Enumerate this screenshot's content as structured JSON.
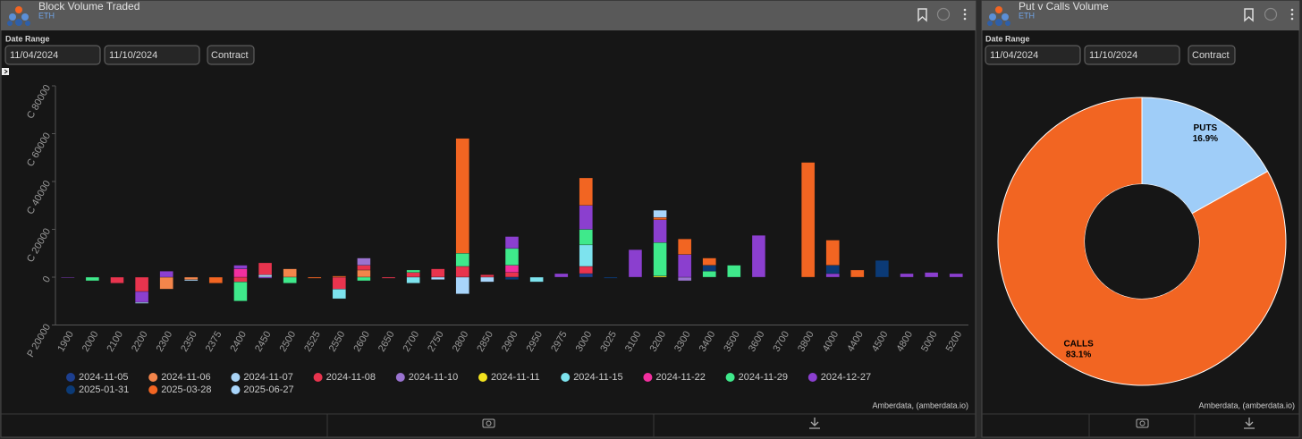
{
  "chart_data": [
    {
      "type": "bar",
      "stacked": true,
      "title": "Block Volume Traded",
      "subtitle": "ETH",
      "categories": [
        "1900",
        "2000",
        "2100",
        "2200",
        "2300",
        "2350",
        "2375",
        "2400",
        "2450",
        "2500",
        "2525",
        "2550",
        "2600",
        "2650",
        "2700",
        "2750",
        "2800",
        "2850",
        "2900",
        "2950",
        "2975",
        "3000",
        "3025",
        "3100",
        "3200",
        "3300",
        "3400",
        "3500",
        "3600",
        "3700",
        "3800",
        "4000",
        "4400",
        "4500",
        "4800",
        "5000",
        "5200"
      ],
      "ylim": [
        -20000,
        80000
      ],
      "yticks": [
        {
          "value": -20000,
          "label": "P 20000"
        },
        0,
        {
          "value": 20000,
          "label": "C 20000"
        },
        {
          "value": 40000,
          "label": "C 40000"
        },
        {
          "value": 60000,
          "label": "C 60000"
        },
        {
          "value": 80000,
          "label": "C 80000"
        }
      ],
      "grid": false,
      "series": [
        {
          "name": "2024-11-05",
          "color": "#1d3f8f",
          "values": [
            null,
            null,
            null,
            null,
            null,
            null,
            null,
            null,
            null,
            null,
            null,
            null,
            null,
            null,
            null,
            null,
            null,
            null,
            null,
            null,
            null,
            1500,
            null,
            null,
            null,
            null,
            null,
            null,
            null,
            null,
            null,
            null,
            null,
            null,
            null,
            null,
            null
          ]
        },
        {
          "name": "2024-11-06",
          "color": "#f3854b",
          "values": [
            null,
            null,
            null,
            null,
            -5000,
            -1000,
            null,
            null,
            null,
            3500,
            null,
            null,
            3000,
            null,
            null,
            null,
            null,
            null,
            null,
            null,
            null,
            null,
            null,
            null,
            null,
            null,
            null,
            null,
            null,
            null,
            null,
            null,
            null,
            null,
            null,
            null,
            null
          ]
        },
        {
          "name": "2024-11-07",
          "color": "#a9d3f5",
          "values": [
            null,
            null,
            null,
            null,
            null,
            -500,
            null,
            null,
            1000,
            null,
            null,
            null,
            null,
            null,
            null,
            null,
            null,
            null,
            null,
            null,
            null,
            null,
            null,
            null,
            null,
            null,
            null,
            null,
            null,
            null,
            null,
            null,
            null,
            null,
            null,
            null,
            null
          ]
        },
        {
          "name": "2024-11-08",
          "color": "#e8344e",
          "values": [
            null,
            null,
            -2500,
            -6000,
            null,
            null,
            null,
            -2000,
            5000,
            null,
            null,
            -5000,
            2000,
            -500,
            2000,
            3500,
            4500,
            1000,
            2000,
            null,
            null,
            3000,
            null,
            null,
            null,
            null,
            null,
            null,
            null,
            null,
            null,
            null,
            null,
            null,
            null,
            null,
            null
          ]
        },
        {
          "name": "2024-11-10",
          "color": "#9a73d0",
          "values": [
            null,
            null,
            null,
            null,
            null,
            null,
            null,
            null,
            null,
            null,
            null,
            null,
            3000,
            null,
            null,
            null,
            null,
            null,
            null,
            null,
            null,
            null,
            null,
            null,
            null,
            -1500,
            null,
            null,
            null,
            null,
            null,
            null,
            null,
            null,
            null,
            null,
            null
          ]
        },
        {
          "name": "2024-11-11",
          "color": "#f2e21e",
          "values": [
            null,
            null,
            null,
            null,
            null,
            null,
            null,
            null,
            null,
            null,
            null,
            null,
            null,
            null,
            null,
            null,
            null,
            null,
            null,
            null,
            null,
            null,
            null,
            null,
            500,
            null,
            null,
            null,
            null,
            null,
            null,
            null,
            null,
            null,
            null,
            null,
            null
          ]
        },
        {
          "name": "2024-11-15",
          "color": "#7de3ee",
          "values": [
            null,
            null,
            null,
            null,
            null,
            null,
            null,
            null,
            null,
            null,
            null,
            -4000,
            null,
            null,
            -2500,
            null,
            null,
            null,
            null,
            -2000,
            null,
            9000,
            null,
            null,
            null,
            null,
            null,
            null,
            null,
            null,
            null,
            null,
            null,
            null,
            null,
            null,
            null
          ]
        },
        {
          "name": "2024-11-22",
          "color": "#f22f9f",
          "values": [
            null,
            null,
            null,
            null,
            null,
            null,
            null,
            3500,
            null,
            null,
            null,
            null,
            null,
            null,
            null,
            null,
            null,
            null,
            3000,
            null,
            null,
            null,
            null,
            null,
            null,
            null,
            null,
            null,
            null,
            null,
            null,
            null,
            null,
            null,
            null,
            null,
            null
          ]
        },
        {
          "name": "2024-11-29",
          "color": "#3fe98b",
          "values": [
            null,
            -1500,
            null,
            null,
            null,
            null,
            null,
            -8000,
            null,
            -2500,
            null,
            null,
            -1500,
            null,
            1000,
            null,
            5500,
            null,
            7000,
            null,
            null,
            6500,
            null,
            null,
            14000,
            null,
            2500,
            5000,
            null,
            null,
            null,
            null,
            null,
            null,
            null,
            null,
            null
          ]
        },
        {
          "name": "2024-12-27",
          "color": "#8b3fcf",
          "values": [
            -300,
            null,
            null,
            -4500,
            2500,
            null,
            null,
            1500,
            -500,
            null,
            null,
            null,
            null,
            null,
            null,
            null,
            null,
            null,
            5000,
            null,
            1500,
            10000,
            null,
            11500,
            9500,
            9500,
            null,
            null,
            17500,
            null,
            null,
            1500,
            null,
            null,
            1500,
            2000,
            1500
          ]
        },
        {
          "name": "2025-01-31",
          "color": "#0b3a76",
          "values": [
            null,
            null,
            null,
            null,
            null,
            null,
            null,
            null,
            null,
            null,
            null,
            null,
            null,
            null,
            null,
            null,
            null,
            null,
            -1000,
            null,
            null,
            null,
            -500,
            null,
            null,
            null,
            2500,
            null,
            null,
            null,
            null,
            3500,
            null,
            7000,
            null,
            null,
            null
          ]
        },
        {
          "name": "2025-03-28",
          "color": "#f26522",
          "values": [
            null,
            null,
            null,
            null,
            null,
            null,
            -2500,
            null,
            null,
            null,
            -500,
            500,
            null,
            null,
            null,
            null,
            48000,
            null,
            null,
            null,
            null,
            11500,
            null,
            null,
            1000,
            6500,
            3000,
            null,
            null,
            null,
            48000,
            10500,
            3000,
            null,
            null,
            null,
            null
          ]
        },
        {
          "name": "2025-06-27",
          "color": "#a8d5fb",
          "values": [
            null,
            null,
            null,
            -500,
            null,
            null,
            null,
            null,
            null,
            null,
            null,
            null,
            null,
            null,
            null,
            -1000,
            -7000,
            -2000,
            null,
            null,
            null,
            null,
            null,
            null,
            3000,
            null,
            null,
            null,
            null,
            null,
            null,
            null,
            null,
            null,
            null,
            null,
            null
          ]
        }
      ]
    },
    {
      "type": "pie",
      "donut": true,
      "title": "Put v Calls Volume",
      "subtitle": "ETH",
      "categories": [
        "PUTS",
        "CALLS"
      ],
      "values": [
        16.9,
        83.1
      ],
      "value_labels": [
        "16.9%",
        "83.1%"
      ],
      "colors": [
        "#9fcdf8",
        "#f26522"
      ]
    }
  ],
  "controls": [
    {
      "date_label": "Date Range",
      "start": "11/04/2024",
      "end": "11/10/2024",
      "button": "Contract",
      "credit": "Amberdata, (amberdata.io)"
    },
    {
      "date_label": "Date Range",
      "start": "11/04/2024",
      "end": "11/10/2024",
      "button": "Contract",
      "credit": "Amberdata, (amberdata.io)"
    }
  ]
}
